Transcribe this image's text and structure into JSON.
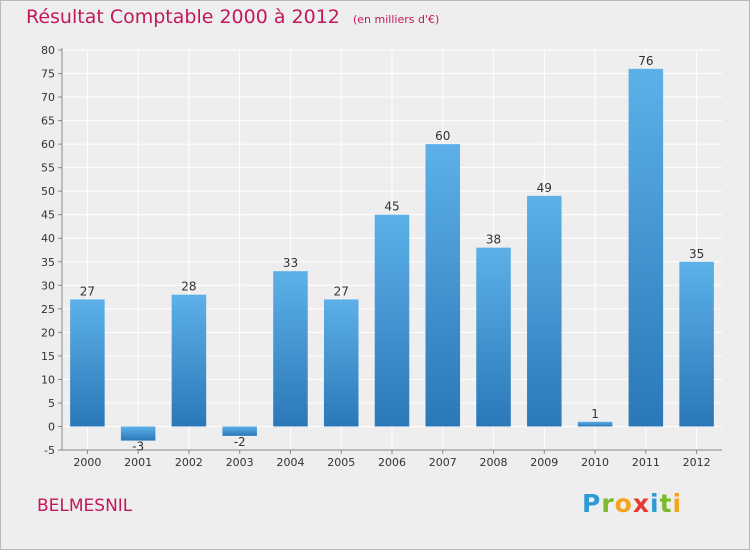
{
  "title": "Résultat Comptable 2000 à 2012",
  "subtitle": "(en milliers d'€)",
  "commune": "BELMESNIL",
  "brand": {
    "text": "Proxiti",
    "letters": [
      {
        "ch": "P",
        "color": "#2e9bd6"
      },
      {
        "ch": "r",
        "color": "#7cb92b"
      },
      {
        "ch": "o",
        "color": "#f5a31a"
      },
      {
        "ch": "x",
        "color": "#e53935"
      },
      {
        "ch": "i",
        "color": "#2e9bd6"
      },
      {
        "ch": "t",
        "color": "#7cb92b"
      },
      {
        "ch": "i",
        "color": "#f5a31a"
      }
    ]
  },
  "colors": {
    "title": "#c2185b",
    "bar_top": "#5db0e8",
    "bar_bottom": "#2a78b8",
    "background": "#eeeeee",
    "grid": "#ffffff"
  },
  "chart_data": {
    "type": "bar",
    "categories": [
      "2000",
      "2001",
      "2002",
      "2003",
      "2004",
      "2005",
      "2006",
      "2007",
      "2008",
      "2009",
      "2010",
      "2011",
      "2012"
    ],
    "values": [
      27,
      -3,
      28,
      -2,
      33,
      27,
      45,
      60,
      38,
      49,
      1,
      76,
      35
    ],
    "value_labels": [
      "27",
      "-3",
      "28",
      "-2",
      "33",
      "27",
      "45",
      "60",
      "38",
      "49",
      "1",
      "76",
      "35"
    ],
    "ylim": [
      -5,
      80
    ],
    "yticks": [
      -5,
      0,
      5,
      10,
      15,
      20,
      25,
      30,
      35,
      40,
      45,
      50,
      55,
      60,
      65,
      70,
      75,
      80
    ],
    "grid": true,
    "legend": "none"
  }
}
